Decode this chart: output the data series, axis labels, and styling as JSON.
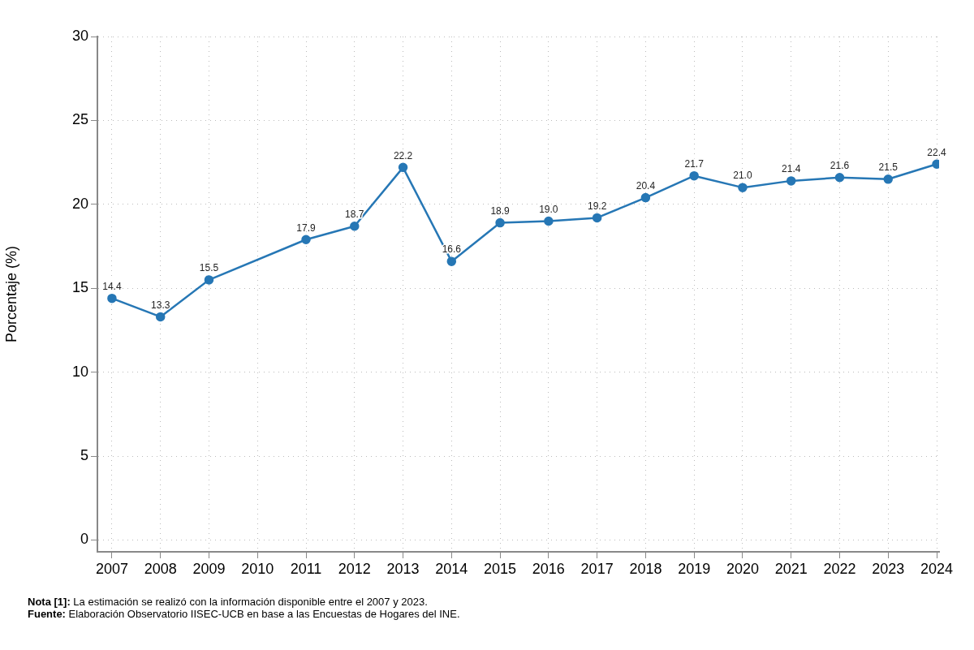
{
  "chart_data": {
    "type": "line",
    "ylabel": "Porcentaje (%)",
    "xlim": [
      2006.7,
      2024.05
    ],
    "xticks": [
      2007,
      2008,
      2009,
      2010,
      2011,
      2012,
      2013,
      2014,
      2015,
      2016,
      2017,
      2018,
      2019,
      2020,
      2021,
      2022,
      2023,
      2024
    ],
    "ylim": [
      -0.7,
      30
    ],
    "yticks": [
      0,
      5,
      10,
      15,
      20,
      25,
      30
    ],
    "series": [
      {
        "color": "#2677b5",
        "x": [
          2007,
          2008,
          2009,
          2011,
          2012,
          2013,
          2014,
          2015,
          2016,
          2017,
          2018,
          2019,
          2020,
          2021,
          2022,
          2023,
          2024
        ],
        "values": [
          14.4,
          13.3,
          15.5,
          17.9,
          18.7,
          22.2,
          16.6,
          18.9,
          19.0,
          19.2,
          20.4,
          21.7,
          21.0,
          21.4,
          21.6,
          21.5,
          22.4
        ],
        "value_labels": [
          "14.4",
          "13.3",
          "15.5",
          "17.9",
          "18.7",
          "22.2",
          "16.6",
          "18.9",
          "19.0",
          "19.2",
          "20.4",
          "21.7",
          "21.0",
          "21.4",
          "21.6",
          "21.5",
          "22.4"
        ]
      }
    ],
    "grid": true,
    "marker": "circle",
    "line_style": "solid",
    "legend": false,
    "annotations": [
      "Nota [1]: La estimación se realizó con la información disponible entre el 2007 y 2023.",
      "Fuente: Elaboración Observatorio IISEC-UCB en base a las Encuestas de Hogares del INE."
    ]
  }
}
